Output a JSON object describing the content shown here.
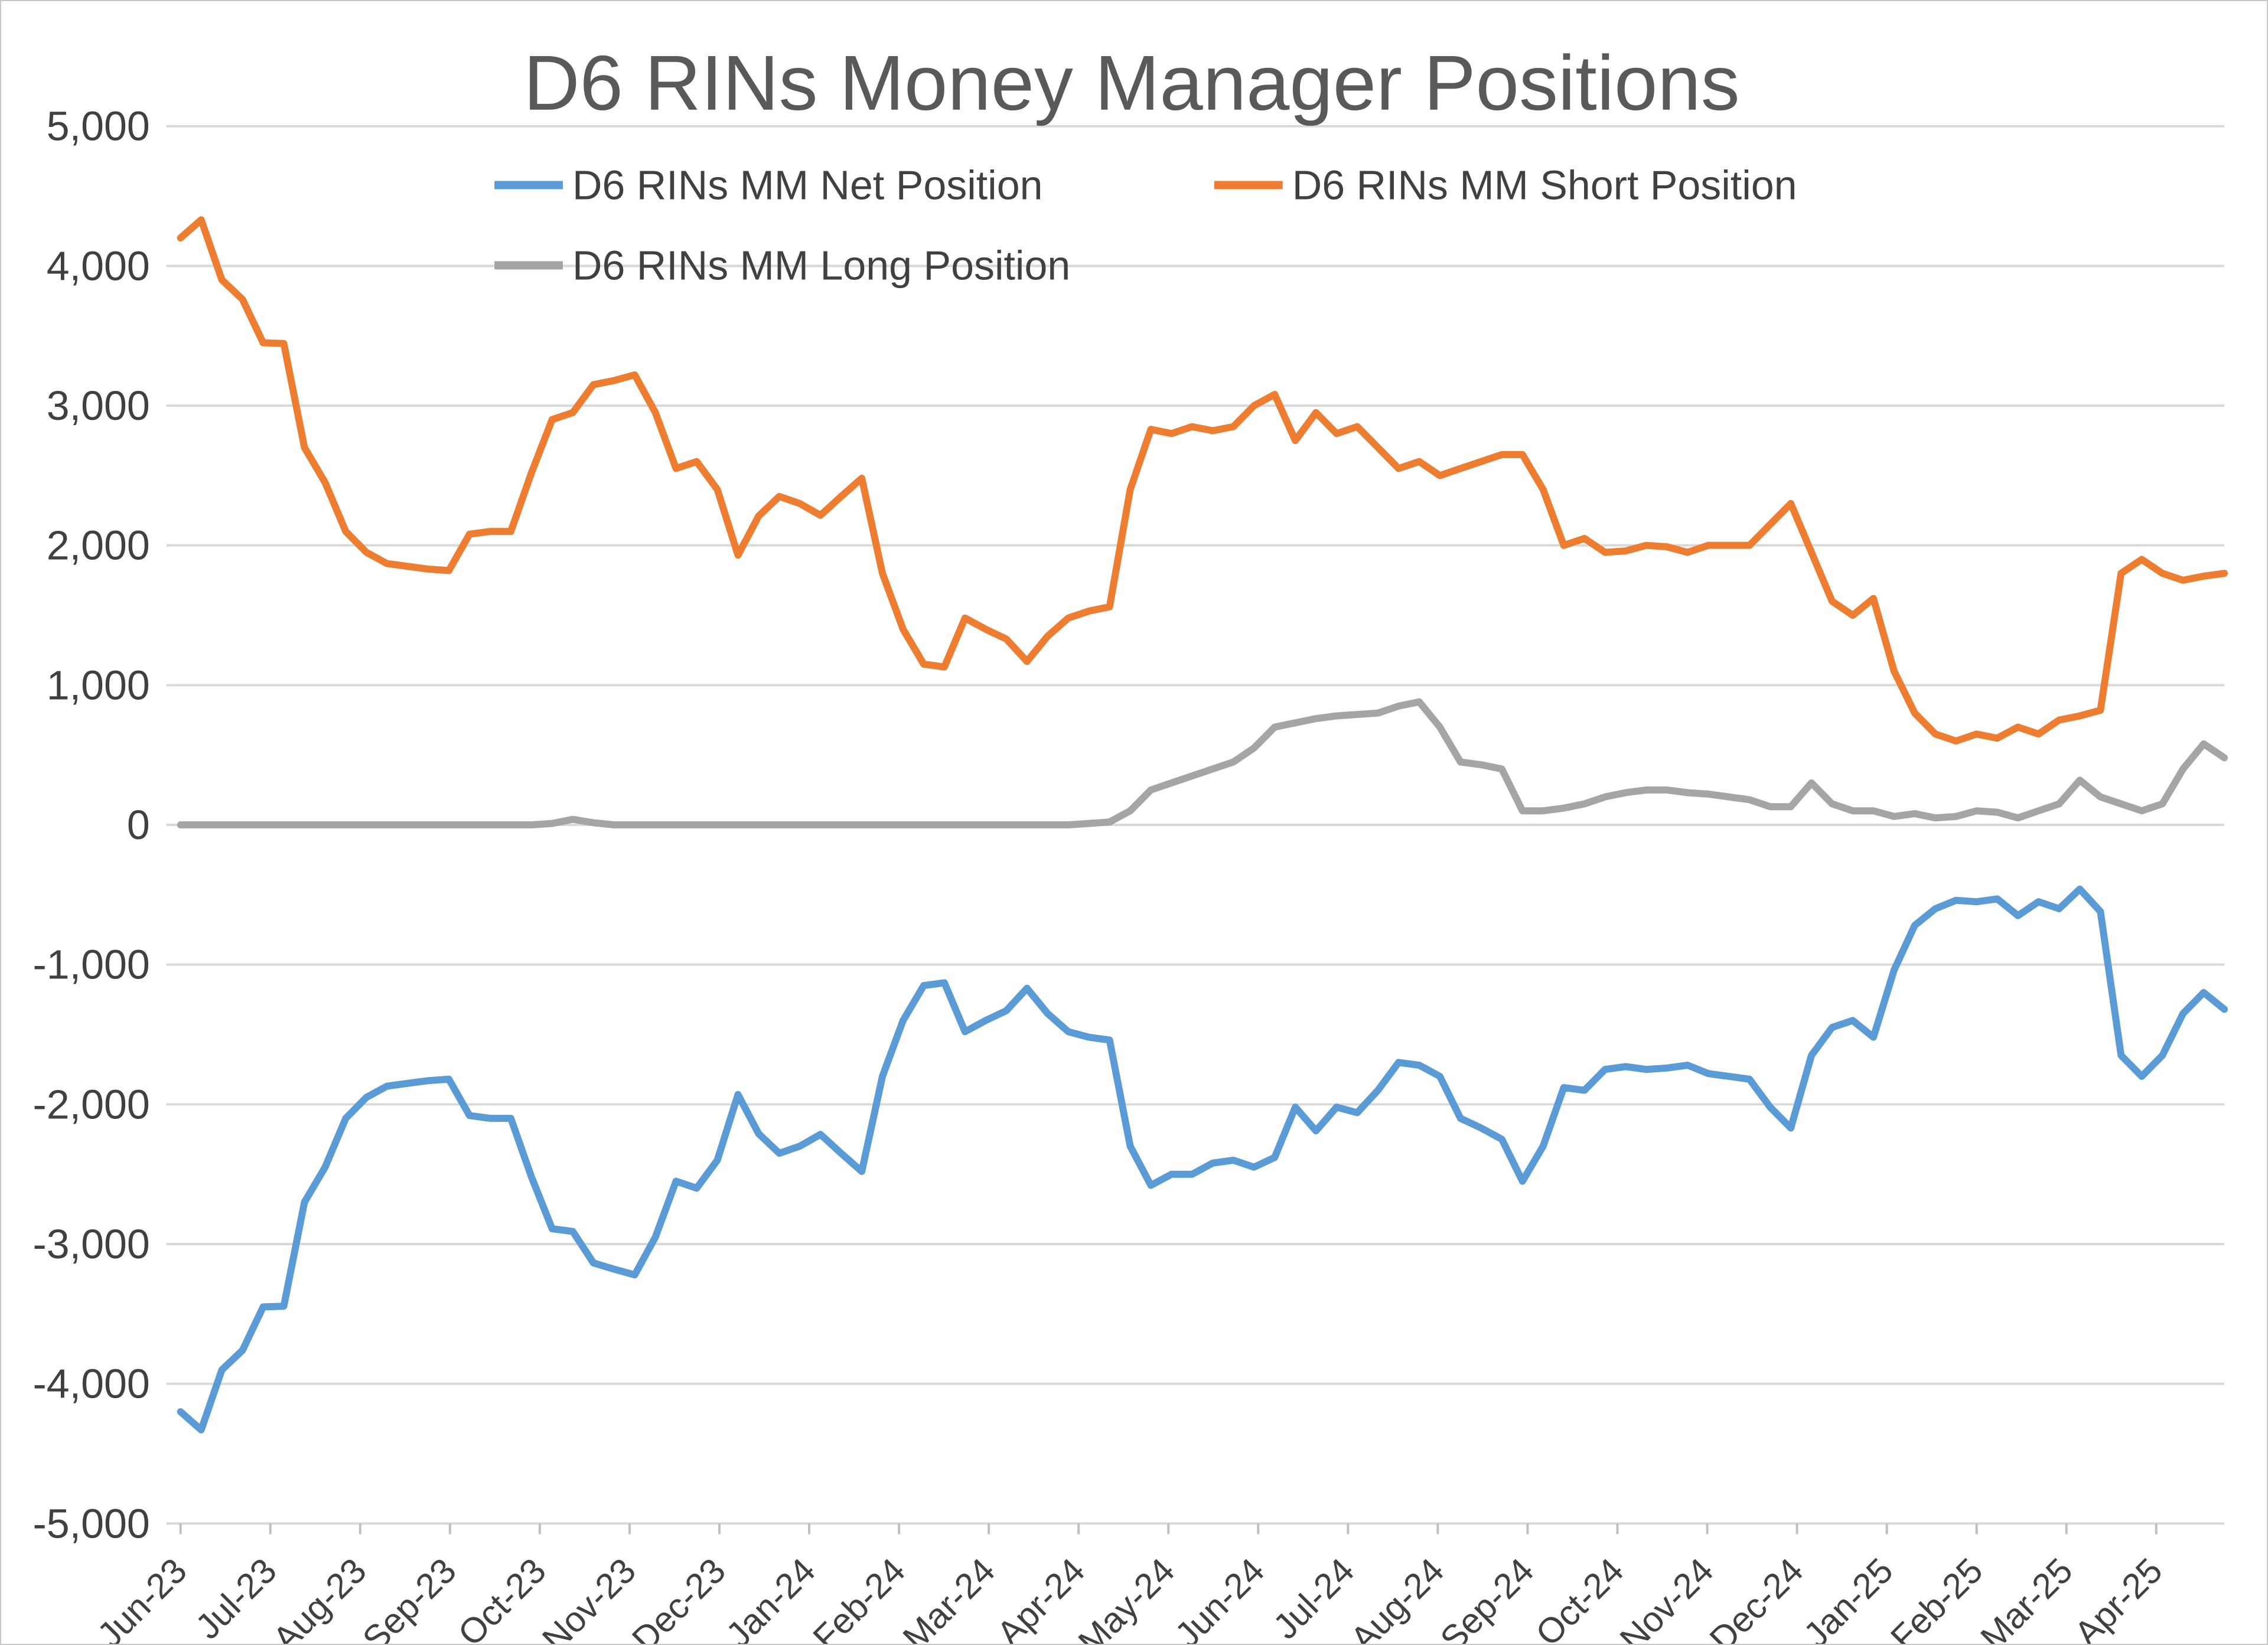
{
  "frame": {
    "background": "#FFFFFF",
    "border_color": "#C8C8C8"
  },
  "chart_data": {
    "type": "line",
    "title": "D6 RINs Money Manager Positions",
    "title_color": "#595959",
    "axis_label_color": "#404040",
    "grid_color": "#D9D9D9",
    "tick_color": "#BFBFBF",
    "grid": true,
    "legend_position": "top",
    "ylim": [
      -5000,
      5000
    ],
    "ytick_step": 1000,
    "y_tick_labels": [
      "-5,000",
      "-4,000",
      "-3,000",
      "-2,000",
      "-1,000",
      "0",
      "1,000",
      "2,000",
      "3,000",
      "4,000",
      "5,000"
    ],
    "x_tick_labels": [
      "Jun-23",
      "Jul-23",
      "Aug-23",
      "Sep-23",
      "Oct-23",
      "Nov-23",
      "Dec-23",
      "Jan-24",
      "Feb-24",
      "Mar-24",
      "Apr-24",
      "May-24",
      "Jun-24",
      "Jul-24",
      "Aug-24",
      "Sep-24",
      "Oct-24",
      "Nov-24",
      "Dec-24",
      "Jan-25",
      "Feb-25",
      "Mar-25",
      "Apr-25"
    ],
    "weeks_per_tick": 4.35,
    "x_unit": "week",
    "series": [
      {
        "name": "D6 RINs MM Net Position",
        "color": "#5B9BD5",
        "values": [
          -4200,
          -4330,
          -3900,
          -3760,
          -3450,
          -3445,
          -2700,
          -2450,
          -2100,
          -1950,
          -1870,
          -1850,
          -1830,
          -1820,
          -2080,
          -2100,
          -2100,
          -2520,
          -2890,
          -2910,
          -3135,
          -3180,
          -3220,
          -2950,
          -2550,
          -2600,
          -2400,
          -1930,
          -2210,
          -2350,
          -2300,
          -2215,
          -2350,
          -2480,
          -1800,
          -1400,
          -1150,
          -1130,
          -1480,
          -1400,
          -1330,
          -1170,
          -1350,
          -1480,
          -1520,
          -1540,
          -2300,
          -2580,
          -2500,
          -2500,
          -2420,
          -2400,
          -2450,
          -2380,
          -2020,
          -2190,
          -2020,
          -2060,
          -1900,
          -1700,
          -1720,
          -1800,
          -2100,
          -2170,
          -2250,
          -2550,
          -2300,
          -1880,
          -1900,
          -1750,
          -1730,
          -1750,
          -1740,
          -1720,
          -1780,
          -1800,
          -1820,
          -2020,
          -2170,
          -1650,
          -1450,
          -1400,
          -1520,
          -1040,
          -720,
          -600,
          -540,
          -550,
          -530,
          -650,
          -550,
          -600,
          -460,
          -620,
          -1650,
          -1800,
          -1650,
          -1350,
          -1200,
          -1320
        ]
      },
      {
        "name": "D6 RINs MM Short Position",
        "color": "#ED7D31",
        "values": [
          4200,
          4330,
          3900,
          3760,
          3450,
          3445,
          2700,
          2450,
          2100,
          1950,
          1870,
          1850,
          1830,
          1820,
          2080,
          2100,
          2100,
          2520,
          2900,
          2950,
          3150,
          3180,
          3220,
          2950,
          2550,
          2600,
          2400,
          1930,
          2210,
          2350,
          2300,
          2215,
          2350,
          2480,
          1800,
          1400,
          1150,
          1130,
          1480,
          1400,
          1330,
          1170,
          1350,
          1480,
          1530,
          1560,
          2400,
          2830,
          2800,
          2850,
          2820,
          2850,
          3000,
          3080,
          2750,
          2950,
          2800,
          2850,
          2700,
          2550,
          2600,
          2500,
          2550,
          2600,
          2650,
          2650,
          2400,
          2000,
          2050,
          1950,
          1960,
          2000,
          1990,
          1950,
          2000,
          2000,
          2000,
          2150,
          2300,
          1950,
          1600,
          1500,
          1620,
          1100,
          800,
          650,
          600,
          650,
          620,
          700,
          650,
          750,
          780,
          820,
          1800,
          1900,
          1800,
          1750,
          1780,
          1800
        ]
      },
      {
        "name": "D6 RINs MM Long Position",
        "color": "#A5A5A5",
        "values": [
          0,
          0,
          0,
          0,
          0,
          0,
          0,
          0,
          0,
          0,
          0,
          0,
          0,
          0,
          0,
          0,
          0,
          0,
          10,
          40,
          15,
          0,
          0,
          0,
          0,
          0,
          0,
          0,
          0,
          0,
          0,
          0,
          0,
          0,
          0,
          0,
          0,
          0,
          0,
          0,
          0,
          0,
          0,
          0,
          10,
          20,
          100,
          250,
          300,
          350,
          400,
          450,
          550,
          700,
          730,
          760,
          780,
          790,
          800,
          850,
          880,
          700,
          450,
          430,
          400,
          100,
          100,
          120,
          150,
          200,
          230,
          250,
          250,
          230,
          220,
          200,
          180,
          130,
          130,
          300,
          150,
          100,
          100,
          60,
          80,
          50,
          60,
          100,
          90,
          50,
          100,
          150,
          320,
          200,
          150,
          100,
          150,
          400,
          580,
          480
        ]
      }
    ]
  }
}
